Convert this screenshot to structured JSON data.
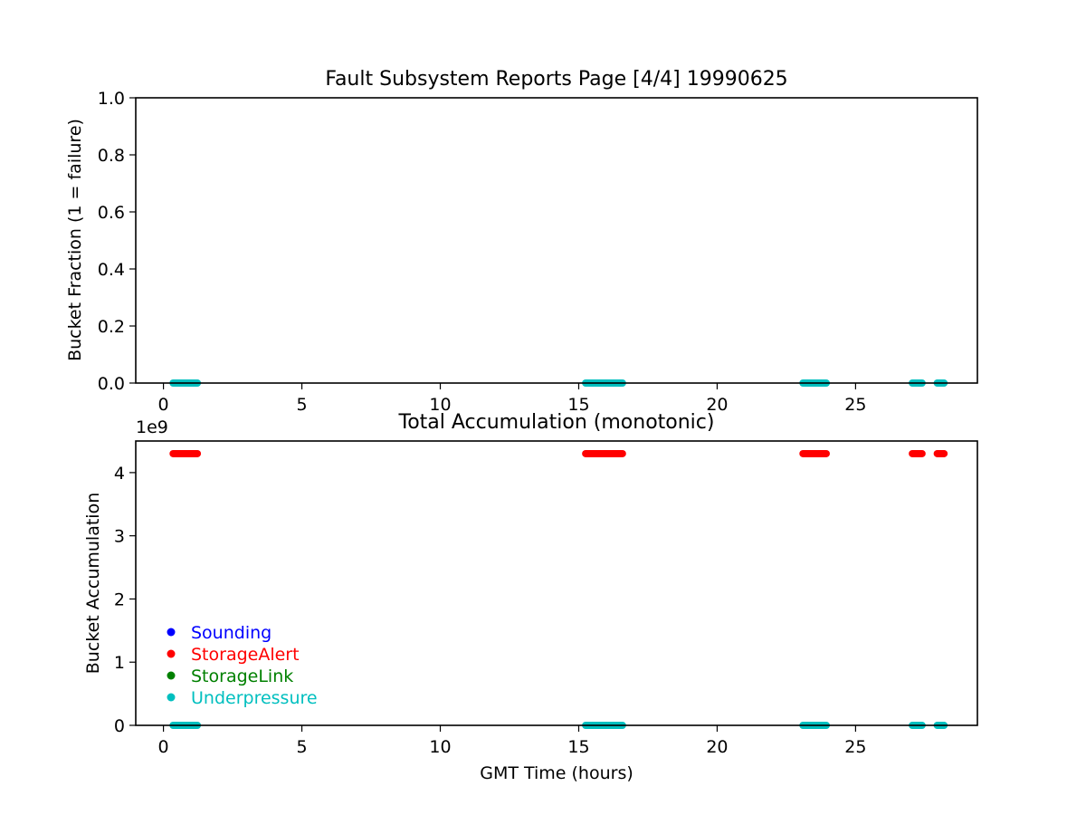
{
  "chart_data": [
    {
      "type": "scatter",
      "title": "Fault Subsystem Reports Page [4/4] 19990625",
      "xlabel": "",
      "ylabel": "Bucket Fraction (1 = failure)",
      "xlim": [
        -1.0,
        29.4
      ],
      "ylim": [
        0,
        1
      ],
      "xticks": [
        "0",
        "5",
        "10",
        "15",
        "20",
        "25"
      ],
      "yticks": [
        "0.0",
        "0.2",
        "0.4",
        "0.6",
        "0.8",
        "1.0"
      ],
      "grid": false,
      "series": [
        {
          "name": "Underpressure",
          "color": "#00bfbf",
          "segments": [
            [
              0.35,
              1.25
            ],
            [
              15.25,
              16.6
            ],
            [
              23.1,
              23.95
            ],
            [
              27.05,
              27.4
            ],
            [
              27.95,
              28.2
            ]
          ],
          "value": 0
        }
      ]
    },
    {
      "type": "scatter",
      "title": "Total Accumulation (monotonic)",
      "xlabel": "GMT Time (hours)",
      "ylabel": "Bucket Accumulation",
      "offset_text": "1e9",
      "xlim": [
        -1.0,
        29.4
      ],
      "ylim": [
        0,
        4.5
      ],
      "xticks": [
        "0",
        "5",
        "10",
        "15",
        "20",
        "25"
      ],
      "yticks": [
        "0",
        "1",
        "2",
        "3",
        "4"
      ],
      "grid": false,
      "legend": {
        "placement": "lower-left",
        "entries": [
          "Sounding",
          "StorageAlert",
          "StorageLink",
          "Underpressure"
        ]
      },
      "series": [
        {
          "name": "Sounding",
          "color": "#0000ff",
          "segments": [],
          "value": null
        },
        {
          "name": "StorageAlert",
          "color": "#ff0000",
          "segments": [
            [
              0.35,
              1.25
            ],
            [
              15.25,
              16.6
            ],
            [
              23.1,
              23.95
            ],
            [
              27.05,
              27.4
            ],
            [
              27.95,
              28.2
            ]
          ],
          "value": 4.3
        },
        {
          "name": "StorageLink",
          "color": "#008000",
          "segments": [],
          "value": null
        },
        {
          "name": "Underpressure",
          "color": "#00bfbf",
          "segments": [
            [
              0.35,
              1.25
            ],
            [
              15.25,
              16.6
            ],
            [
              23.1,
              23.95
            ],
            [
              27.05,
              27.4
            ],
            [
              27.95,
              28.2
            ]
          ],
          "value": 0
        }
      ]
    }
  ]
}
